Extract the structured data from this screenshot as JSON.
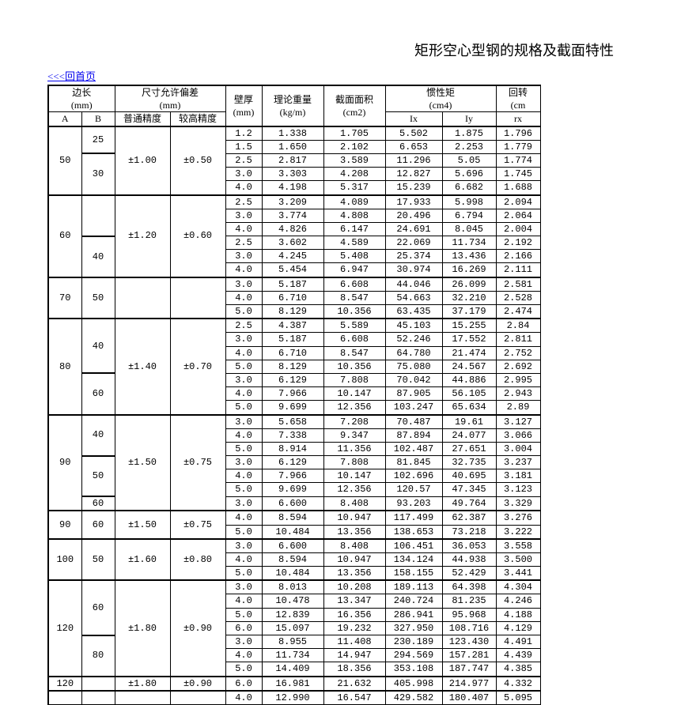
{
  "title": "矩形空心型钢的规格及截面特性",
  "back_link": "<<<回首页",
  "headers": {
    "edge": "边长",
    "edge_unit": "(mm)",
    "tol": "尺寸允许偏差",
    "tol_unit": "(mm)",
    "thick": "壁厚",
    "thick_unit": "(mm)",
    "weight": "理论重量",
    "weight_unit": "(kg/m)",
    "area": "截面面积",
    "area_unit": "(cm2)",
    "inertia": "惯性矩",
    "inertia_unit": "(cm4)",
    "gyration": "回转",
    "gyration_unit": "(cm",
    "A": "A",
    "B": "B",
    "p1": "普通精度",
    "p2": "较高精度",
    "Ix": "Ix",
    "Iy": "Iy",
    "rx": "rx"
  },
  "groups": [
    {
      "A": "50",
      "sub": [
        {
          "B": "25",
          "rows": [
            {
              "t": "1.2",
              "w": "1.338",
              "s": "1.705",
              "ix": "5.502",
              "iy": "1.875",
              "rx": "1.796"
            },
            {
              "t": "1.5",
              "w": "1.650",
              "s": "2.102",
              "ix": "6.653",
              "iy": "2.253",
              "rx": "1.779"
            }
          ]
        },
        {
          "B": "30",
          "rows": [
            {
              "t": "2.5",
              "w": "2.817",
              "s": "3.589",
              "ix": "11.296",
              "iy": "5.05",
              "rx": "1.774"
            },
            {
              "t": "3.0",
              "w": "3.303",
              "s": "4.208",
              "ix": "12.827",
              "iy": "5.696",
              "rx": "1.745"
            },
            {
              "t": "4.0",
              "w": "4.198",
              "s": "5.317",
              "ix": "15.239",
              "iy": "6.682",
              "rx": "1.688"
            }
          ]
        }
      ],
      "tol": {
        "p1": "±1.00",
        "p2": "±0.50"
      }
    },
    {
      "A": "60",
      "sub": [
        {
          "B": "",
          "rows": [
            {
              "t": "2.5",
              "w": "3.209",
              "s": "4.089",
              "ix": "17.933",
              "iy": "5.998",
              "rx": "2.094"
            },
            {
              "t": "3.0",
              "w": "3.774",
              "s": "4.808",
              "ix": "20.496",
              "iy": "6.794",
              "rx": "2.064"
            },
            {
              "t": "4.0",
              "w": "4.826",
              "s": "6.147",
              "ix": "24.691",
              "iy": "8.045",
              "rx": "2.004"
            }
          ]
        },
        {
          "B": "40",
          "rows": [
            {
              "t": "2.5",
              "w": "3.602",
              "s": "4.589",
              "ix": "22.069",
              "iy": "11.734",
              "rx": "2.192"
            },
            {
              "t": "3.0",
              "w": "4.245",
              "s": "5.408",
              "ix": "25.374",
              "iy": "13.436",
              "rx": "2.166"
            },
            {
              "t": "4.0",
              "w": "5.454",
              "s": "6.947",
              "ix": "30.974",
              "iy": "16.269",
              "rx": "2.111"
            }
          ]
        }
      ],
      "tol": {
        "p1": "±1.20",
        "p2": "±0.60"
      }
    },
    {
      "A": "70",
      "sub": [
        {
          "B": "50",
          "rows": [
            {
              "t": "3.0",
              "w": "5.187",
              "s": "6.608",
              "ix": "44.046",
              "iy": "26.099",
              "rx": "2.581"
            },
            {
              "t": "4.0",
              "w": "6.710",
              "s": "8.547",
              "ix": "54.663",
              "iy": "32.210",
              "rx": "2.528"
            },
            {
              "t": "5.0",
              "w": "8.129",
              "s": "10.356",
              "ix": "63.435",
              "iy": "37.179",
              "rx": "2.474"
            }
          ]
        }
      ],
      "tol": null
    },
    {
      "A": "80",
      "sub": [
        {
          "B": "40",
          "rows": [
            {
              "t": "2.5",
              "w": "4.387",
              "s": "5.589",
              "ix": "45.103",
              "iy": "15.255",
              "rx": "2.84"
            },
            {
              "t": "3.0",
              "w": "5.187",
              "s": "6.608",
              "ix": "52.246",
              "iy": "17.552",
              "rx": "2.811"
            },
            {
              "t": "4.0",
              "w": "6.710",
              "s": "8.547",
              "ix": "64.780",
              "iy": "21.474",
              "rx": "2.752"
            },
            {
              "t": "5.0",
              "w": "8.129",
              "s": "10.356",
              "ix": "75.080",
              "iy": "24.567",
              "rx": "2.692"
            }
          ]
        },
        {
          "B": "60",
          "rows": [
            {
              "t": "3.0",
              "w": "6.129",
              "s": "7.808",
              "ix": "70.042",
              "iy": "44.886",
              "rx": "2.995"
            },
            {
              "t": "4.0",
              "w": "7.966",
              "s": "10.147",
              "ix": "87.905",
              "iy": "56.105",
              "rx": "2.943"
            },
            {
              "t": "5.0",
              "w": "9.699",
              "s": "12.356",
              "ix": "103.247",
              "iy": "65.634",
              "rx": "2.89"
            }
          ]
        }
      ],
      "tol": {
        "p1": "±1.40",
        "p2": "±0.70"
      }
    },
    {
      "A": "90",
      "sub": [
        {
          "B": "40",
          "rows": [
            {
              "t": "3.0",
              "w": "5.658",
              "s": "7.208",
              "ix": "70.487",
              "iy": "19.61",
              "rx": "3.127"
            },
            {
              "t": "4.0",
              "w": "7.338",
              "s": "9.347",
              "ix": "87.894",
              "iy": "24.077",
              "rx": "3.066"
            },
            {
              "t": "5.0",
              "w": "8.914",
              "s": "11.356",
              "ix": "102.487",
              "iy": "27.651",
              "rx": "3.004"
            }
          ]
        },
        {
          "B": "50",
          "rows": [
            {
              "t": "3.0",
              "w": "6.129",
              "s": "7.808",
              "ix": "81.845",
              "iy": "32.735",
              "rx": "3.237"
            },
            {
              "t": "4.0",
              "w": "7.966",
              "s": "10.147",
              "ix": "102.696",
              "iy": "40.695",
              "rx": "3.181"
            },
            {
              "t": "5.0",
              "w": "9.699",
              "s": "12.356",
              "ix": "120.57",
              "iy": "47.345",
              "rx": "3.123"
            }
          ]
        },
        {
          "B": "60",
          "rows": [
            {
              "t": "3.0",
              "w": "6.600",
              "s": "8.408",
              "ix": "93.203",
              "iy": "49.764",
              "rx": "3.329"
            }
          ]
        }
      ],
      "tol": {
        "p1": "±1.50",
        "p2": "±0.75"
      }
    },
    {
      "A": "90",
      "sub": [
        {
          "B": "60",
          "rows": [
            {
              "t": "4.0",
              "w": "8.594",
              "s": "10.947",
              "ix": "117.499",
              "iy": "62.387",
              "rx": "3.276"
            },
            {
              "t": "5.0",
              "w": "10.484",
              "s": "13.356",
              "ix": "138.653",
              "iy": "73.218",
              "rx": "3.222"
            }
          ]
        }
      ],
      "tol": {
        "p1": "±1.50",
        "p2": "±0.75"
      }
    },
    {
      "A": "100",
      "sub": [
        {
          "B": "50",
          "rows": [
            {
              "t": "3.0",
              "w": "6.600",
              "s": "8.408",
              "ix": "106.451",
              "iy": "36.053",
              "rx": "3.558"
            },
            {
              "t": "4.0",
              "w": "8.594",
              "s": "10.947",
              "ix": "134.124",
              "iy": "44.938",
              "rx": "3.500"
            },
            {
              "t": "5.0",
              "w": "10.484",
              "s": "13.356",
              "ix": "158.155",
              "iy": "52.429",
              "rx": "3.441"
            }
          ]
        }
      ],
      "tol": {
        "p1": "±1.60",
        "p2": "±0.80"
      }
    },
    {
      "A": "120",
      "sub": [
        {
          "B": "60",
          "rows": [
            {
              "t": "3.0",
              "w": "8.013",
              "s": "10.208",
              "ix": "189.113",
              "iy": "64.398",
              "rx": "4.304"
            },
            {
              "t": "4.0",
              "w": "10.478",
              "s": "13.347",
              "ix": "240.724",
              "iy": "81.235",
              "rx": "4.246"
            },
            {
              "t": "5.0",
              "w": "12.839",
              "s": "16.356",
              "ix": "286.941",
              "iy": "95.968",
              "rx": "4.188"
            },
            {
              "t": "6.0",
              "w": "15.097",
              "s": "19.232",
              "ix": "327.950",
              "iy": "108.716",
              "rx": "4.129"
            }
          ]
        },
        {
          "B": "80",
          "rows": [
            {
              "t": "3.0",
              "w": "8.955",
              "s": "11.408",
              "ix": "230.189",
              "iy": "123.430",
              "rx": "4.491"
            },
            {
              "t": "4.0",
              "w": "11.734",
              "s": "14.947",
              "ix": "294.569",
              "iy": "157.281",
              "rx": "4.439"
            },
            {
              "t": "5.0",
              "w": "14.409",
              "s": "18.356",
              "ix": "353.108",
              "iy": "187.747",
              "rx": "4.385"
            }
          ]
        }
      ],
      "tol": {
        "p1": "±1.80",
        "p2": "±0.90"
      }
    },
    {
      "A": "120",
      "sub": [
        {
          "B": "",
          "rows": [
            {
              "t": "6.0",
              "w": "16.981",
              "s": "21.632",
              "ix": "405.998",
              "iy": "214.977",
              "rx": "4.332"
            }
          ]
        }
      ],
      "tol": {
        "p1": "±1.80",
        "p2": "±0.90"
      }
    },
    {
      "A": "",
      "sub": [
        {
          "B": "",
          "rows": [
            {
              "t": "4.0",
              "w": "12.990",
              "s": "16.547",
              "ix": "429.582",
              "iy": "180.407",
              "rx": "5.095"
            }
          ]
        }
      ],
      "tol": null
    }
  ]
}
